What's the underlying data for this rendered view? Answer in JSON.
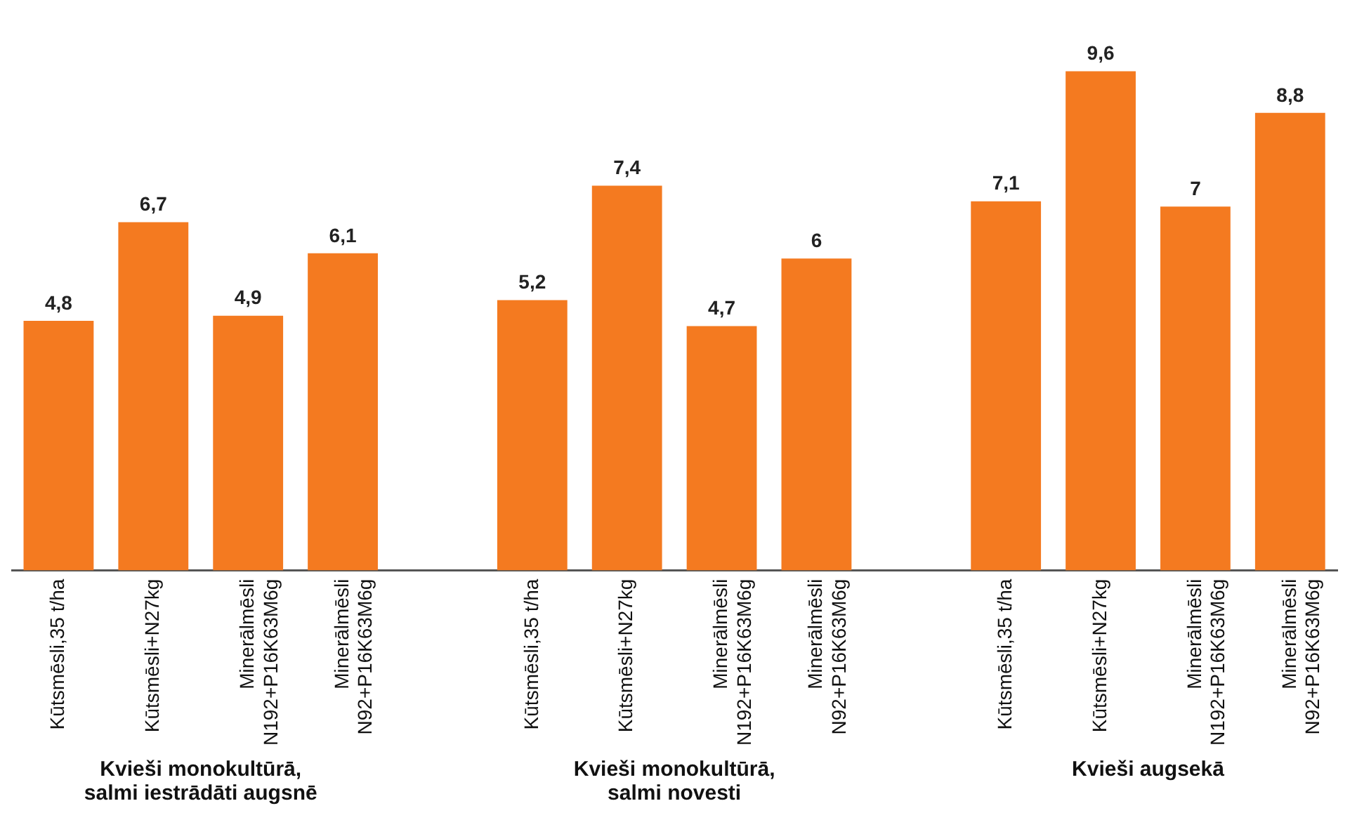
{
  "chart_data": {
    "type": "bar",
    "categories": [
      "Kūtsmēsli,35 t/ha",
      "Kūtsmēsli+N27kg",
      "Minerālmēsli N192+P16K63M6g",
      "Minerālmēsli N92+P16K63M6g",
      null,
      "Kūtsmēsli,35 t/ha",
      "Kūtsmēsli+N27kg",
      "Minerālmēsli N192+P16K63M6g",
      "Minerālmēsli N92+P16K63M6g",
      null,
      "Kūtsmēsli,35 t/ha",
      "Kūtsmēsli+N27kg",
      "Minerālmēsli N192+P16K63M6g",
      "Minerālmēsli N92+P16K63M6g"
    ],
    "values": [
      4.8,
      6.7,
      4.9,
      6.1,
      null,
      5.2,
      7.4,
      4.7,
      6,
      null,
      7.1,
      9.6,
      7,
      8.8
    ],
    "color": "#f47a20",
    "value_labels": [
      "4,8",
      "6,7",
      "4,9",
      "6,1",
      null,
      "5,2",
      "7,4",
      "4,7",
      "6",
      null,
      "7,1",
      "9,6",
      "7",
      "8,8"
    ],
    "grid": false,
    "legend": false,
    "tick_labels": "x",
    "annotations": [
      "Kvieši monokultūrā, salmi iestrādāti augsnē",
      "Kvieši monokultūrā, salmi novesti",
      "Kvieši augsekā"
    ]
  }
}
